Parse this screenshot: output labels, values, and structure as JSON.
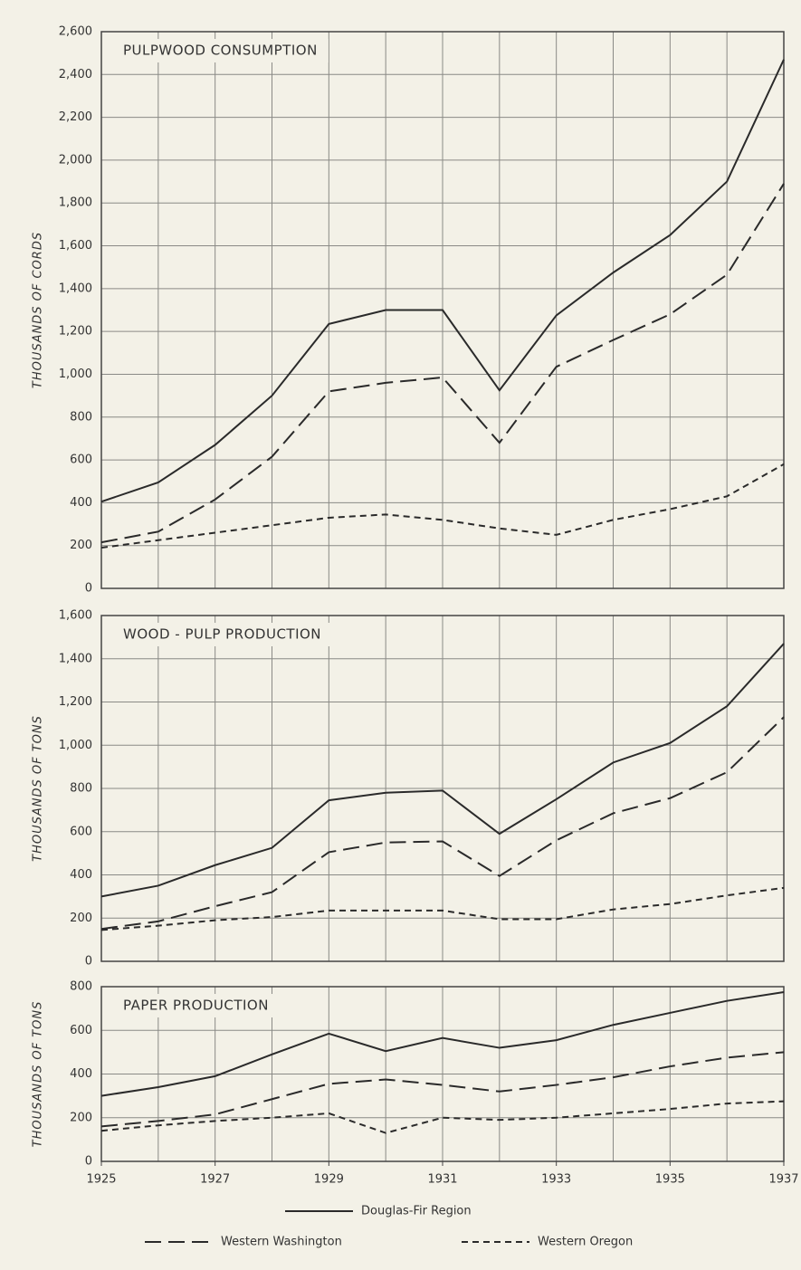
{
  "chart_data": [
    {
      "type": "line",
      "title": "PULPWOOD CONSUMPTION",
      "y_label": "THOUSANDS OF CORDS",
      "x": [
        1925,
        1926,
        1927,
        1928,
        1929,
        1930,
        1931,
        1932,
        1933,
        1934,
        1935,
        1936,
        1937
      ],
      "xlim": [
        1925,
        1937
      ],
      "ylim": [
        0,
        2600
      ],
      "yticks": [
        0,
        200,
        400,
        600,
        800,
        {
          "value": 1000,
          "label": "1,000"
        },
        {
          "value": 1200,
          "label": "1,200"
        },
        {
          "value": 1400,
          "label": "1,400"
        },
        {
          "value": 1600,
          "label": "1,600"
        },
        {
          "value": 1800,
          "label": "1,800"
        },
        {
          "value": 2000,
          "label": "2,000"
        },
        {
          "value": 2200,
          "label": "2,200"
        },
        {
          "value": 2400,
          "label": "2,400"
        },
        {
          "value": 2600,
          "label": "2,600"
        }
      ],
      "grid": true,
      "series": [
        {
          "dash": "solid",
          "color": "#2a2a2a",
          "values": [
            405,
            495,
            670,
            900,
            1235,
            1300,
            1300,
            925,
            1275,
            1475,
            1650,
            1900,
            2470
          ]
        },
        {
          "dash": "long",
          "color": "#2a2a2a",
          "values": [
            215,
            265,
            415,
            615,
            920,
            960,
            985,
            680,
            1035,
            1160,
            1280,
            1465,
            1890
          ]
        },
        {
          "dash": "short",
          "color": "#2a2a2a",
          "values": [
            190,
            225,
            260,
            295,
            330,
            345,
            320,
            280,
            250,
            320,
            370,
            430,
            580
          ]
        }
      ]
    },
    {
      "type": "line",
      "title": "WOOD - PULP PRODUCTION",
      "y_label": "THOUSANDS OF TONS",
      "x": [
        1925,
        1926,
        1927,
        1928,
        1929,
        1930,
        1931,
        1932,
        1933,
        1934,
        1935,
        1936,
        1937
      ],
      "xlim": [
        1925,
        1937
      ],
      "ylim": [
        0,
        1600
      ],
      "yticks": [
        0,
        200,
        400,
        600,
        800,
        {
          "value": 1000,
          "label": "1,000"
        },
        {
          "value": 1200,
          "label": "1,200"
        },
        {
          "value": 1400,
          "label": "1,400"
        },
        {
          "value": 1600,
          "label": "1,600"
        }
      ],
      "grid": true,
      "series": [
        {
          "dash": "solid",
          "color": "#2a2a2a",
          "values": [
            300,
            350,
            445,
            525,
            745,
            780,
            790,
            590,
            750,
            920,
            1010,
            1180,
            1470
          ]
        },
        {
          "dash": "long",
          "color": "#2a2a2a",
          "values": [
            150,
            185,
            255,
            320,
            505,
            550,
            555,
            395,
            560,
            685,
            755,
            875,
            1130
          ]
        },
        {
          "dash": "short",
          "color": "#2a2a2a",
          "values": [
            145,
            165,
            190,
            205,
            235,
            235,
            235,
            195,
            195,
            240,
            265,
            305,
            340
          ]
        }
      ]
    },
    {
      "type": "line",
      "title": "PAPER PRODUCTION",
      "y_label": "THOUSANDS OF TONS",
      "x": [
        1925,
        1926,
        1927,
        1928,
        1929,
        1930,
        1931,
        1932,
        1933,
        1934,
        1935,
        1936,
        1937
      ],
      "xlim": [
        1925,
        1937
      ],
      "xticks": [
        1925,
        1927,
        1929,
        1931,
        1933,
        1935,
        1937
      ],
      "ylim": [
        0,
        800
      ],
      "yticks": [
        0,
        200,
        400,
        600,
        800
      ],
      "grid": true,
      "series": [
        {
          "dash": "solid",
          "color": "#2a2a2a",
          "values": [
            300,
            340,
            390,
            490,
            585,
            505,
            565,
            520,
            555,
            625,
            680,
            735,
            775
          ]
        },
        {
          "dash": "long",
          "color": "#2a2a2a",
          "values": [
            160,
            185,
            215,
            285,
            355,
            375,
            350,
            320,
            350,
            385,
            435,
            475,
            500
          ]
        },
        {
          "dash": "short",
          "color": "#2a2a2a",
          "values": [
            140,
            165,
            185,
            200,
            220,
            130,
            200,
            190,
            200,
            220,
            240,
            265,
            275
          ]
        }
      ]
    }
  ],
  "legend": [
    {
      "name": "Douglas-Fir Region",
      "dash": "solid"
    },
    {
      "name": "Western Washington",
      "dash": "long"
    },
    {
      "name": "Western Oregon",
      "dash": "short"
    }
  ]
}
